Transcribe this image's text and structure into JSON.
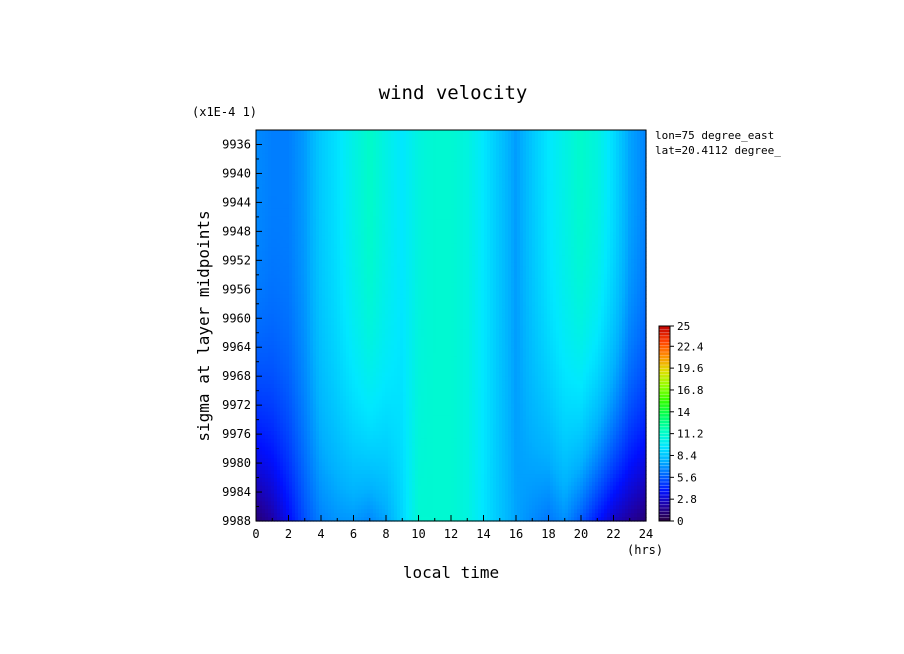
{
  "chart_data": {
    "type": "heatmap",
    "title": "wind velocity",
    "xlabel": "local time",
    "ylabel": "sigma at layer midpoints",
    "x_unit": "(hrs)",
    "y_scale_note": "(x1E-4 1)",
    "xlim": [
      0,
      24
    ],
    "ylim": [
      9988,
      9934
    ],
    "x_ticks": [
      "0",
      "2",
      "4",
      "6",
      "8",
      "10",
      "12",
      "14",
      "16",
      "18",
      "20",
      "22",
      "24"
    ],
    "y_ticks": [
      "9936",
      "9940",
      "9944",
      "9948",
      "9952",
      "9956",
      "9960",
      "9964",
      "9968",
      "9972",
      "9976",
      "9980",
      "9984",
      "9988"
    ],
    "annotations": [
      "lon=75 degree_east",
      "lat=20.4112 degree_"
    ],
    "colorbar": {
      "range": [
        0,
        25
      ],
      "ticks": [
        "0",
        "2.8",
        "5.6",
        "8.4",
        "11.2",
        "14",
        "16.8",
        "19.6",
        "22.4",
        "25"
      ],
      "colormap": [
        "#2a0040",
        "#2000a0",
        "#0010ff",
        "#0060ff",
        "#00b0ff",
        "#00e8ff",
        "#00ffc0",
        "#00ff60",
        "#30ff00",
        "#90ff00",
        "#e0e000",
        "#ff9000",
        "#ff4000",
        "#c00000"
      ]
    },
    "grid": false,
    "field": {
      "x": [
        0,
        1,
        2,
        3,
        4,
        5,
        6,
        7,
        8,
        9,
        10,
        11,
        12,
        13,
        14,
        15,
        16,
        17,
        18,
        19,
        20,
        21,
        22,
        23,
        24
      ],
      "y_top": [
        6.8,
        6.5,
        6.5,
        7.2,
        8.6,
        9.4,
        10.4,
        11.3,
        10.4,
        9.6,
        10.6,
        11.0,
        11.0,
        10.6,
        9.6,
        8.4,
        7.2,
        8.5,
        9.6,
        10.4,
        11.2,
        10.6,
        9.2,
        7.4,
        6.6
      ],
      "y_bottom": [
        1.0,
        2.0,
        3.6,
        5.4,
        6.6,
        7.0,
        7.1,
        6.7,
        7.4,
        9.0,
        11.0,
        11.0,
        11.0,
        10.6,
        9.5,
        8.4,
        7.4,
        6.8,
        6.3,
        6.9,
        5.6,
        4.0,
        2.6,
        1.8,
        1.1
      ],
      "vertical_profile_exponent": 3
    }
  }
}
